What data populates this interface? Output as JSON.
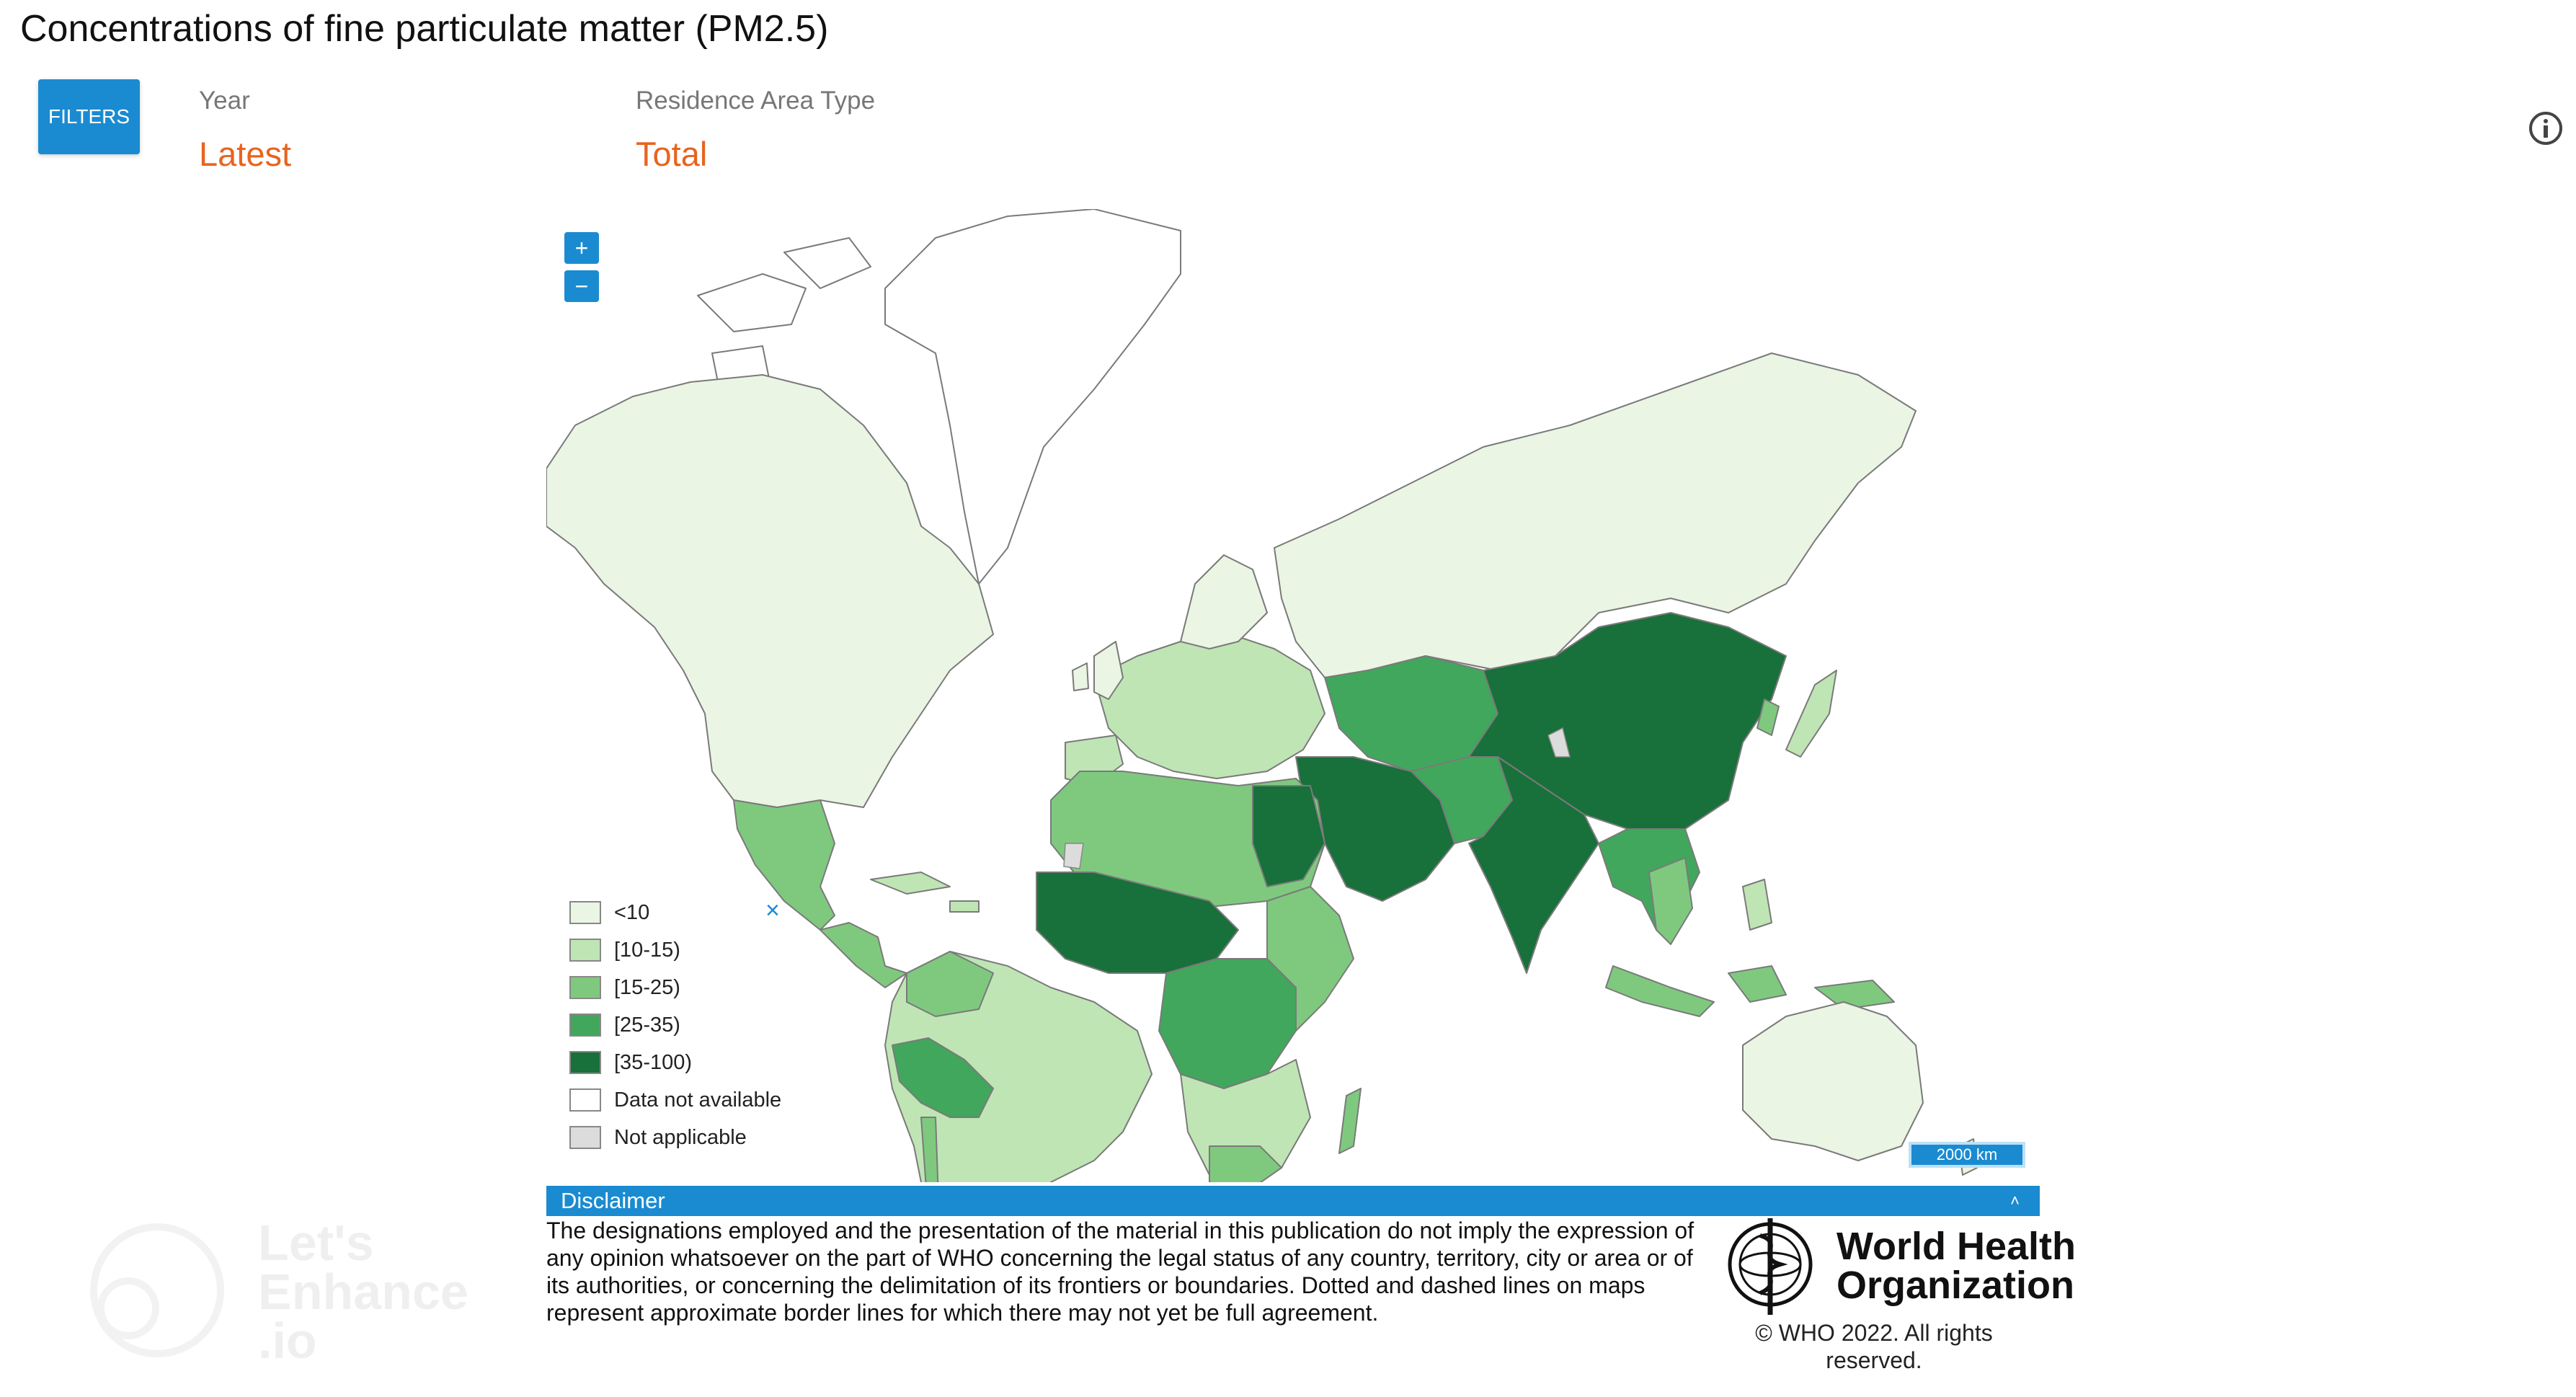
{
  "title": "Concentrations of fine particulate matter (PM2.5)",
  "filters": {
    "button_label": "FILTERS",
    "year_label": "Year",
    "year_value": "Latest",
    "area_label": "Residence Area Type",
    "area_value": "Total"
  },
  "map": {
    "zoom_in_label": "+",
    "zoom_out_label": "−",
    "scale_label": "2000 km",
    "legend_close": "×",
    "legend": [
      {
        "label": "<10",
        "color": "#eaf5e4"
      },
      {
        "label": "[10-15)",
        "color": "#bfe5b5"
      },
      {
        "label": "[15-25)",
        "color": "#7fc97f"
      },
      {
        "label": "[25-35)",
        "color": "#41a75c"
      },
      {
        "label": "[35-100)",
        "color": "#18703a"
      },
      {
        "label": "Data not available",
        "color": "#ffffff"
      },
      {
        "label": "Not applicable",
        "color": "#dcdcdc"
      }
    ]
  },
  "disclaimer": {
    "heading": "Disclaimer",
    "text": "The designations employed and the presentation of the material in this publication do not imply the expression of any opinion whatsoever on the part of WHO concerning the legal status of any country, territory, city or area or of its authorities, or concerning the delimitation of its frontiers or boundaries. Dotted and dashed lines on maps represent approximate border lines for which there may not yet be full agreement."
  },
  "who": {
    "name_line1": "World Health",
    "name_line2": "Organization",
    "copyright_line1": "© WHO 2022. All rights",
    "copyright_line2": "reserved."
  },
  "watermark": {
    "line1": "Let's",
    "line2": "Enhance",
    "line3": ".io"
  }
}
